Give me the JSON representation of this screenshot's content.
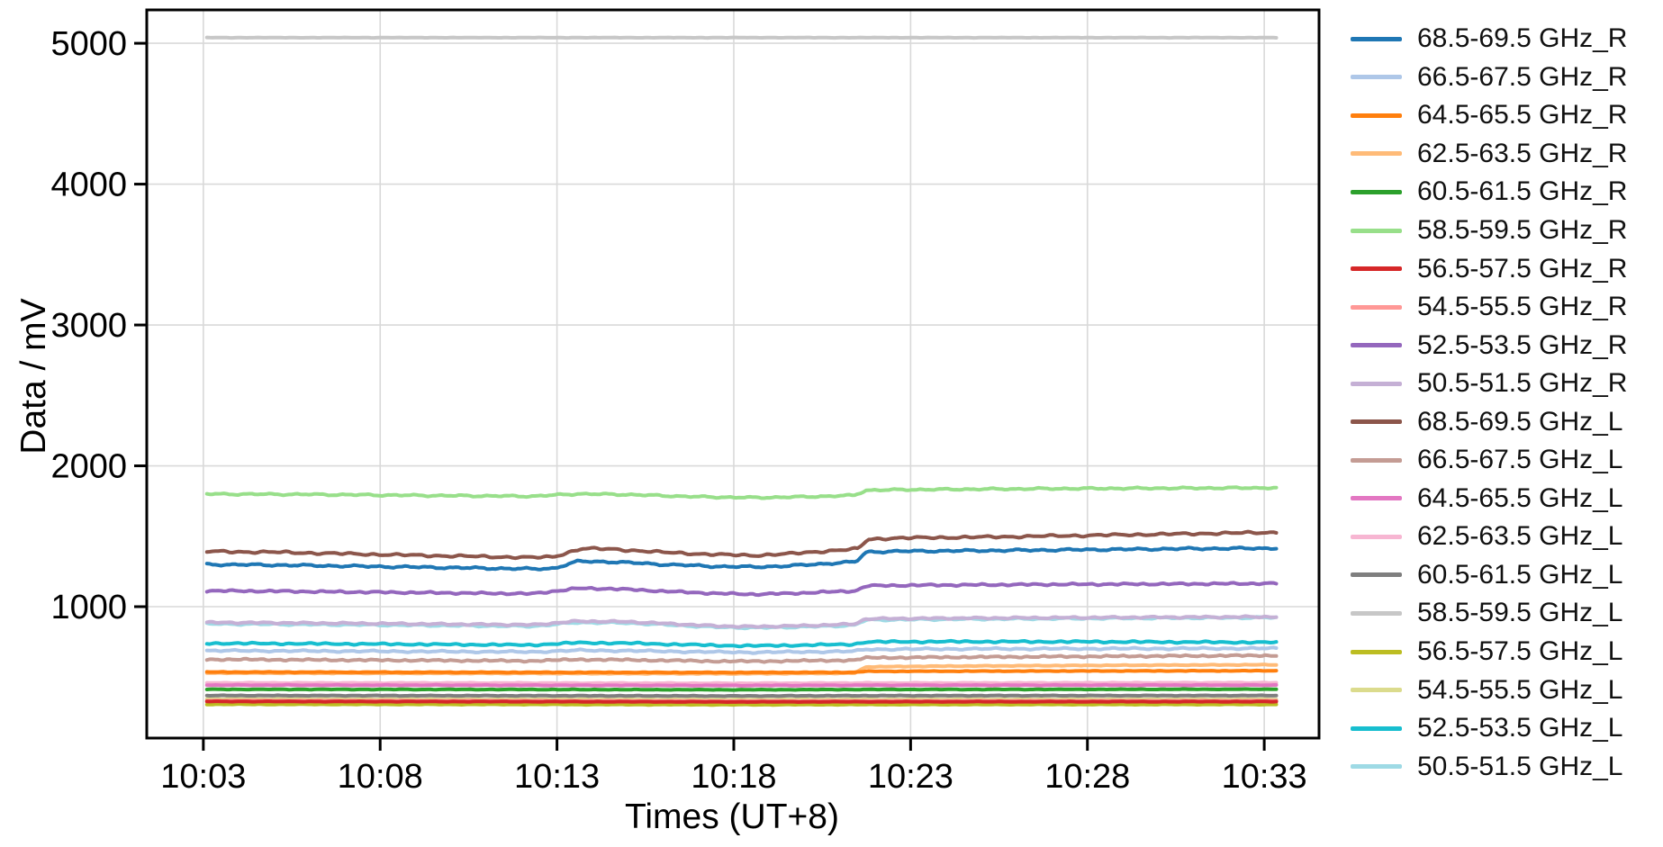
{
  "figure": {
    "background": "#ffffff"
  },
  "chart_data": {
    "type": "line",
    "title": "",
    "xlabel": "Times (UT+8)",
    "ylabel": "Data / mV",
    "grid": true,
    "legend_position": "right-outside",
    "x_tick_labels": [
      "10:03",
      "10:08",
      "10:13",
      "10:18",
      "10:23",
      "10:28",
      "10:33"
    ],
    "x_tick_minutes": [
      0,
      5,
      10,
      15,
      20,
      25,
      30
    ],
    "y_ticks": [
      1000,
      2000,
      3000,
      4000,
      5000
    ],
    "xlim_minutes": [
      -1.6,
      31.55
    ],
    "ylim": [
      67,
      5237
    ],
    "axis_color": "#000000",
    "grid_color": "#d9d9d9",
    "series": [
      {
        "name": "68.5-69.5 GHz_R",
        "color": "#1f77b4",
        "jitter": 6,
        "points": [
          [
            0.1,
            1300
          ],
          [
            2,
            1296
          ],
          [
            6,
            1281
          ],
          [
            9.3,
            1268
          ],
          [
            9.9,
            1272
          ],
          [
            10.6,
            1322
          ],
          [
            11.6,
            1318
          ],
          [
            13,
            1300
          ],
          [
            14.5,
            1286
          ],
          [
            15.6,
            1282
          ],
          [
            16.6,
            1290
          ],
          [
            18,
            1312
          ],
          [
            18.45,
            1318
          ],
          [
            18.75,
            1388
          ],
          [
            19.5,
            1393
          ],
          [
            22,
            1398
          ],
          [
            26,
            1407
          ],
          [
            28,
            1412
          ],
          [
            30.4,
            1415
          ]
        ]
      },
      {
        "name": "66.5-67.5 GHz_R",
        "color": "#aec7e8",
        "jitter": 5,
        "points": [
          [
            0.1,
            688
          ],
          [
            4,
            684
          ],
          [
            9.3,
            679
          ],
          [
            10.6,
            690
          ],
          [
            12,
            687
          ],
          [
            14.5,
            678
          ],
          [
            15.6,
            676
          ],
          [
            17,
            679
          ],
          [
            18.4,
            683
          ],
          [
            18.75,
            697
          ],
          [
            21,
            700
          ],
          [
            26,
            702
          ],
          [
            30.4,
            704
          ]
        ]
      },
      {
        "name": "64.5-65.5 GHz_R",
        "color": "#ff7f0e",
        "jitter": 1.8,
        "points": [
          [
            0.1,
            536
          ],
          [
            9,
            534
          ],
          [
            15,
            533
          ],
          [
            18.4,
            534
          ],
          [
            18.75,
            541
          ],
          [
            24,
            543
          ],
          [
            30.4,
            545
          ]
        ]
      },
      {
        "name": "62.5-63.5 GHz_R",
        "color": "#ffbb78",
        "jitter": 2,
        "points": [
          [
            0.1,
            529
          ],
          [
            9,
            526
          ],
          [
            15,
            524
          ],
          [
            18.4,
            527
          ],
          [
            18.75,
            573
          ],
          [
            21,
            578
          ],
          [
            26,
            584
          ],
          [
            30.4,
            588
          ]
        ]
      },
      {
        "name": "60.5-61.5 GHz_R",
        "color": "#2ca02c",
        "jitter": 1.5,
        "points": [
          [
            0.1,
            413
          ],
          [
            9,
            412
          ],
          [
            15,
            410
          ],
          [
            18.75,
            412
          ],
          [
            30.4,
            414
          ]
        ]
      },
      {
        "name": "58.5-59.5 GHz_R",
        "color": "#98df8a",
        "jitter": 5,
        "points": [
          [
            0.1,
            1800
          ],
          [
            3,
            1797
          ],
          [
            6,
            1790
          ],
          [
            9.3,
            1784
          ],
          [
            10.6,
            1801
          ],
          [
            12,
            1796
          ],
          [
            14,
            1780
          ],
          [
            15.6,
            1774
          ],
          [
            17,
            1780
          ],
          [
            18.4,
            1790
          ],
          [
            18.75,
            1827
          ],
          [
            20,
            1831
          ],
          [
            24,
            1838
          ],
          [
            30.4,
            1844
          ]
        ]
      },
      {
        "name": "56.5-57.5 GHz_R",
        "color": "#d62728",
        "jitter": 1.4,
        "points": [
          [
            0.1,
            327
          ],
          [
            9,
            326
          ],
          [
            15,
            324
          ],
          [
            18.75,
            325
          ],
          [
            30.4,
            326
          ]
        ]
      },
      {
        "name": "54.5-55.5 GHz_R",
        "color": "#ff9896",
        "jitter": 1.4,
        "points": [
          [
            0.1,
            333
          ],
          [
            9,
            332
          ],
          [
            15,
            330
          ],
          [
            18.75,
            331
          ],
          [
            30.4,
            332
          ]
        ]
      },
      {
        "name": "52.5-53.5 GHz_R",
        "color": "#9467bd",
        "jitter": 5.5,
        "points": [
          [
            0.1,
            1113
          ],
          [
            2,
            1110
          ],
          [
            6,
            1100
          ],
          [
            9.3,
            1092
          ],
          [
            10.6,
            1130
          ],
          [
            11.6,
            1127
          ],
          [
            13,
            1110
          ],
          [
            14.5,
            1094
          ],
          [
            15.6,
            1088
          ],
          [
            16.6,
            1094
          ],
          [
            18,
            1108
          ],
          [
            18.45,
            1112
          ],
          [
            18.75,
            1148
          ],
          [
            20,
            1152
          ],
          [
            24,
            1158
          ],
          [
            28,
            1162
          ],
          [
            30.4,
            1165
          ]
        ]
      },
      {
        "name": "50.5-51.5 GHz_R",
        "color": "#c5b0d5",
        "jitter": 5,
        "points": [
          [
            0.1,
            888
          ],
          [
            4,
            882
          ],
          [
            9.3,
            871
          ],
          [
            10.6,
            897
          ],
          [
            12,
            893
          ],
          [
            14.5,
            863
          ],
          [
            15.6,
            858
          ],
          [
            17,
            865
          ],
          [
            18.4,
            876
          ],
          [
            18.75,
            914
          ],
          [
            21,
            918
          ],
          [
            26,
            924
          ],
          [
            30.4,
            928
          ]
        ]
      },
      {
        "name": "68.5-69.5 GHz_L",
        "color": "#8c564b",
        "jitter": 6.5,
        "points": [
          [
            0.1,
            1392
          ],
          [
            2,
            1387
          ],
          [
            6,
            1365
          ],
          [
            9.3,
            1349
          ],
          [
            9.9,
            1354
          ],
          [
            10.7,
            1413
          ],
          [
            11.6,
            1408
          ],
          [
            13,
            1386
          ],
          [
            14.5,
            1370
          ],
          [
            15.6,
            1364
          ],
          [
            16.6,
            1376
          ],
          [
            18,
            1402
          ],
          [
            18.5,
            1410
          ],
          [
            18.8,
            1478
          ],
          [
            19.5,
            1487
          ],
          [
            22,
            1494
          ],
          [
            26,
            1510
          ],
          [
            28,
            1518
          ],
          [
            30.4,
            1528
          ]
        ]
      },
      {
        "name": "66.5-67.5 GHz_L",
        "color": "#c49c94",
        "jitter": 5,
        "points": [
          [
            0.1,
            626
          ],
          [
            4,
            621
          ],
          [
            9.3,
            615
          ],
          [
            10.6,
            625
          ],
          [
            12,
            622
          ],
          [
            14.5,
            613
          ],
          [
            15.6,
            612
          ],
          [
            17,
            616
          ],
          [
            18.4,
            620
          ],
          [
            18.75,
            637
          ],
          [
            21,
            641
          ],
          [
            26,
            648
          ],
          [
            30.4,
            654
          ]
        ]
      },
      {
        "name": "64.5-65.5 GHz_L",
        "color": "#e377c2",
        "jitter": 2,
        "points": [
          [
            0.1,
            443
          ],
          [
            9,
            442
          ],
          [
            15,
            440
          ],
          [
            18.75,
            442
          ],
          [
            30.4,
            443
          ]
        ]
      },
      {
        "name": "62.5-63.5 GHz_L",
        "color": "#f7b6d2",
        "jitter": 2,
        "points": [
          [
            0.1,
            459
          ],
          [
            9,
            458
          ],
          [
            15,
            456
          ],
          [
            18.75,
            458
          ],
          [
            30.4,
            460
          ]
        ]
      },
      {
        "name": "60.5-61.5 GHz_L",
        "color": "#7f7f7f",
        "jitter": 1.8,
        "points": [
          [
            0.1,
            369
          ],
          [
            9,
            368
          ],
          [
            15,
            366
          ],
          [
            18.75,
            368
          ],
          [
            30.4,
            369
          ]
        ]
      },
      {
        "name": "58.5-59.5 GHz_L",
        "color": "#c7c7c7",
        "jitter": 1.2,
        "points": [
          [
            0.1,
            5040
          ],
          [
            30.4,
            5040
          ]
        ]
      },
      {
        "name": "56.5-57.5 GHz_L",
        "color": "#bcbd22",
        "jitter": 1.8,
        "points": [
          [
            0.1,
            307
          ],
          [
            9,
            306
          ],
          [
            15,
            304
          ],
          [
            18.75,
            305
          ],
          [
            30.4,
            306
          ]
        ]
      },
      {
        "name": "54.5-55.5 GHz_L",
        "color": "#dbdb8d",
        "jitter": 1.8,
        "points": [
          [
            0.1,
            343
          ],
          [
            9,
            342
          ],
          [
            15,
            340
          ],
          [
            18.75,
            341
          ],
          [
            30.4,
            342
          ]
        ]
      },
      {
        "name": "52.5-53.5 GHz_L",
        "color": "#17becf",
        "jitter": 5,
        "points": [
          [
            0.1,
            740
          ],
          [
            4,
            736
          ],
          [
            9.3,
            728
          ],
          [
            10.6,
            744
          ],
          [
            12,
            741
          ],
          [
            14.5,
            725
          ],
          [
            15.6,
            722
          ],
          [
            17,
            727
          ],
          [
            18.4,
            733
          ],
          [
            18.75,
            750
          ],
          [
            21,
            752
          ],
          [
            25,
            751
          ],
          [
            30.4,
            746
          ]
        ]
      },
      {
        "name": "50.5-51.5 GHz_L",
        "color": "#9edae5",
        "jitter": 5,
        "points": [
          [
            0.1,
            878
          ],
          [
            4,
            872
          ],
          [
            9.3,
            861
          ],
          [
            10.6,
            888
          ],
          [
            12,
            884
          ],
          [
            14.5,
            855
          ],
          [
            15.6,
            850
          ],
          [
            17,
            857
          ],
          [
            18.4,
            868
          ],
          [
            18.75,
            906
          ],
          [
            21,
            911
          ],
          [
            26,
            918
          ],
          [
            30.4,
            923
          ]
        ]
      }
    ]
  }
}
